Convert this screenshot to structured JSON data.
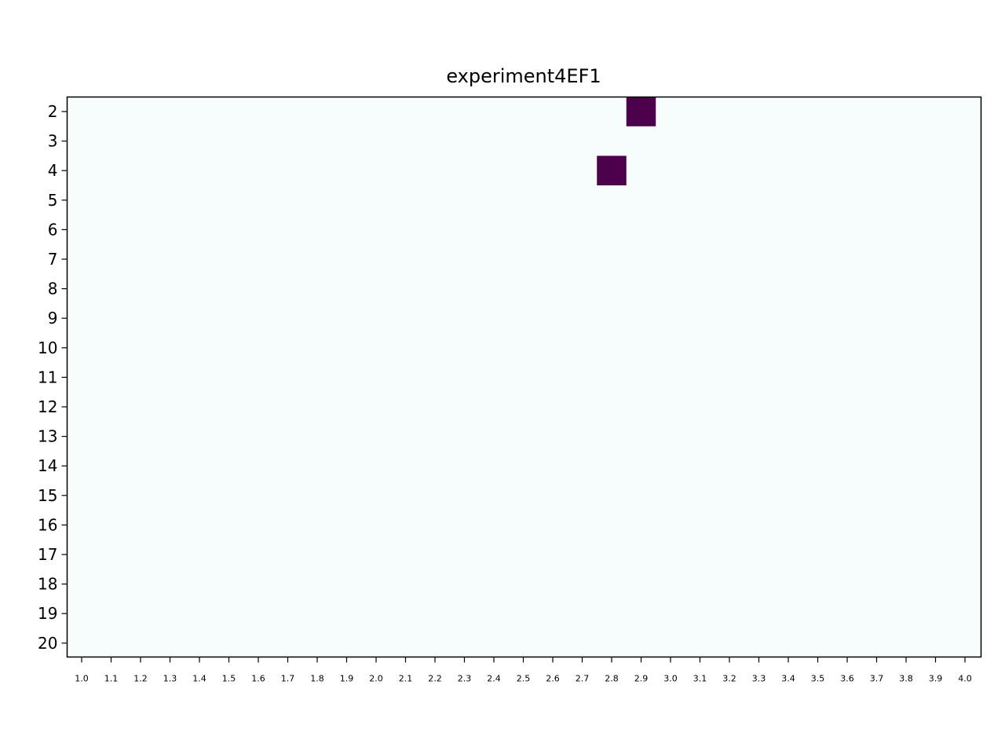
{
  "chart_data": {
    "type": "heatmap",
    "title": "experiment4EF1",
    "xlabel": "",
    "ylabel": "",
    "x_categories": [
      "1.0",
      "1.1",
      "1.2",
      "1.3",
      "1.4",
      "1.5",
      "1.6",
      "1.7",
      "1.8",
      "1.9",
      "2.0",
      "2.1",
      "2.2",
      "2.3",
      "2.4",
      "2.5",
      "2.6",
      "2.7",
      "2.8",
      "2.9",
      "3.0",
      "3.1",
      "3.2",
      "3.3",
      "3.4",
      "3.5",
      "3.6",
      "3.7",
      "3.8",
      "3.9",
      "4.0"
    ],
    "y_categories": [
      "2",
      "3",
      "4",
      "5",
      "6",
      "7",
      "8",
      "9",
      "10",
      "11",
      "12",
      "13",
      "14",
      "15",
      "16",
      "17",
      "18",
      "19",
      "20"
    ],
    "background_color": "#f7fcfd",
    "cell_color": "#4d004b",
    "cells": [
      {
        "x": "2.9",
        "y": "2",
        "value": 1
      },
      {
        "x": "2.8",
        "y": "4",
        "value": 1
      }
    ],
    "grid": false,
    "legend": "none"
  }
}
